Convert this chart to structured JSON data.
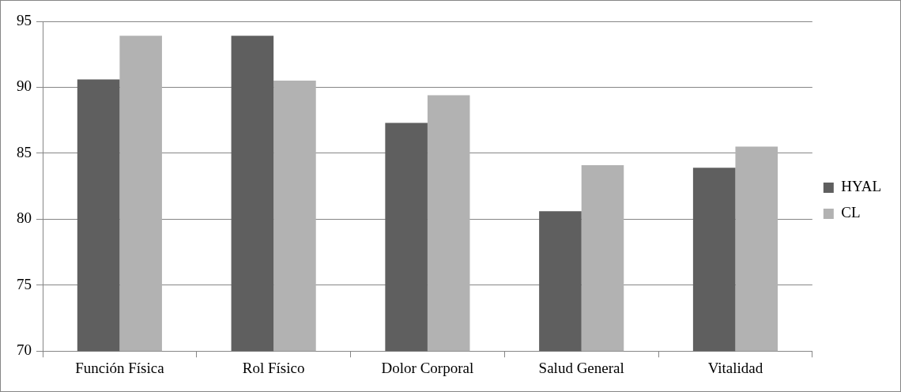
{
  "chart_data": {
    "type": "bar",
    "categories": [
      "Función Física",
      "Rol Físico",
      "Dolor Corporal",
      "Salud General",
      "Vitalidad"
    ],
    "series": [
      {
        "name": "HYAL",
        "color": "#5f5f5f",
        "values": [
          90.6,
          93.9,
          87.3,
          80.6,
          83.9
        ]
      },
      {
        "name": "CL",
        "color": "#b2b2b2",
        "values": [
          93.9,
          90.5,
          89.4,
          84.1,
          85.5
        ]
      }
    ],
    "ylim": [
      70,
      95
    ],
    "yticks": [
      70,
      75,
      80,
      85,
      90,
      95
    ],
    "grid": "y",
    "legend": "right"
  }
}
